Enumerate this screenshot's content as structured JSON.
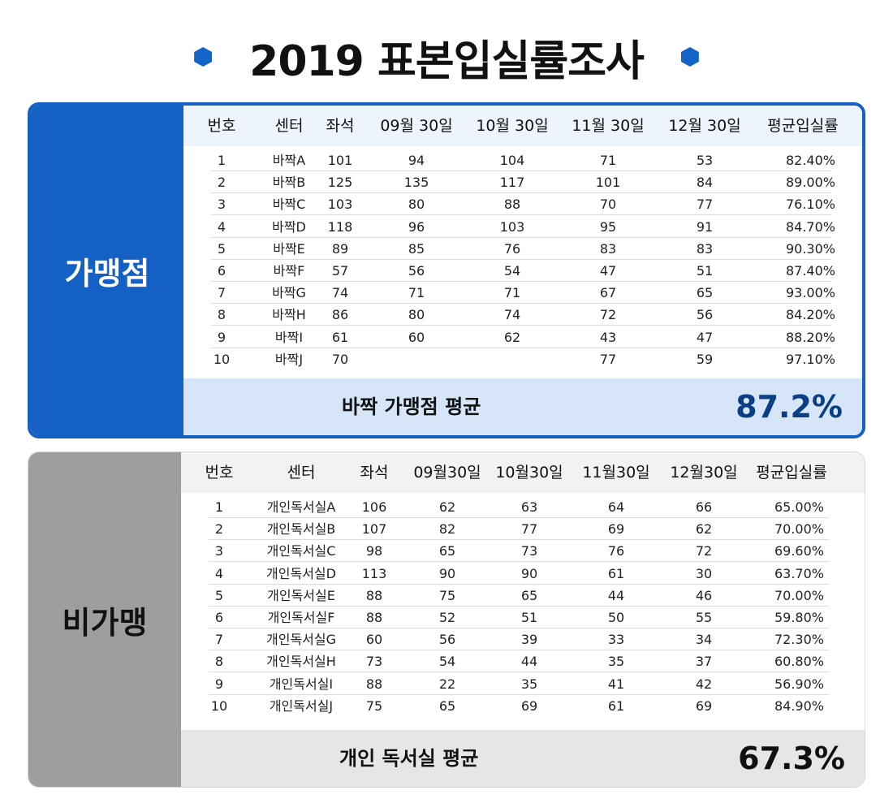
{
  "title": "2019 표본입실률조사",
  "franchise": {
    "side_label": "가맹점",
    "headers": [
      "번호",
      "센터",
      "좌석",
      "09월 30일",
      "10월 30일",
      "11월 30일",
      "12월 30일",
      "평균입실률"
    ],
    "rows": [
      [
        "1",
        "바짝A",
        "101",
        "94",
        "104",
        "71",
        "53",
        "82.40%"
      ],
      [
        "2",
        "바짝B",
        "125",
        "135",
        "117",
        "101",
        "84",
        "89.00%"
      ],
      [
        "3",
        "바짝C",
        "103",
        "80",
        "88",
        "70",
        "77",
        "76.10%"
      ],
      [
        "4",
        "바짝D",
        "118",
        "96",
        "103",
        "95",
        "91",
        "84.70%"
      ],
      [
        "5",
        "바짝E",
        "89",
        "85",
        "76",
        "83",
        "83",
        "90.30%"
      ],
      [
        "6",
        "바짝F",
        "57",
        "56",
        "54",
        "47",
        "51",
        "87.40%"
      ],
      [
        "7",
        "바짝G",
        "74",
        "71",
        "71",
        "67",
        "65",
        "93.00%"
      ],
      [
        "8",
        "바짝H",
        "86",
        "80",
        "74",
        "72",
        "56",
        "84.20%"
      ],
      [
        "9",
        "바짝I",
        "61",
        "60",
        "62",
        "43",
        "47",
        "88.20%"
      ],
      [
        "10",
        "바짝J",
        "70",
        "",
        "",
        "77",
        "59",
        "97.10%"
      ]
    ],
    "avg_label": "바짝 가맹점 평균",
    "avg_value": "87.2%"
  },
  "nonfranchise": {
    "side_label": "비가맹",
    "headers": [
      "번호",
      "센터",
      "좌석",
      "09월30일",
      "10월30일",
      "11월30일",
      "12월30일",
      "평균입실률"
    ],
    "rows": [
      [
        "1",
        "개인독서실A",
        "106",
        "62",
        "63",
        "64",
        "66",
        "65.00%"
      ],
      [
        "2",
        "개인독서실B",
        "107",
        "82",
        "77",
        "69",
        "62",
        "70.00%"
      ],
      [
        "3",
        "개인독서실C",
        "98",
        "65",
        "73",
        "76",
        "72",
        "69.60%"
      ],
      [
        "4",
        "개인독서실D",
        "113",
        "90",
        "90",
        "61",
        "30",
        "63.70%"
      ],
      [
        "5",
        "개인독서실E",
        "88",
        "75",
        "65",
        "44",
        "46",
        "70.00%"
      ],
      [
        "6",
        "개인독서실F",
        "88",
        "52",
        "51",
        "50",
        "55",
        "59.80%"
      ],
      [
        "7",
        "개인독서실G",
        "60",
        "56",
        "39",
        "33",
        "34",
        "72.30%"
      ],
      [
        "8",
        "개인독서실H",
        "73",
        "54",
        "44",
        "35",
        "37",
        "60.80%"
      ],
      [
        "9",
        "개인독서실I",
        "88",
        "22",
        "35",
        "41",
        "42",
        "56.90%"
      ],
      [
        "10",
        "개인독서실J",
        "75",
        "65",
        "69",
        "61",
        "69",
        "84.90%"
      ]
    ],
    "avg_label": "개인 독서실 평균",
    "avg_value": "67.3%"
  }
}
